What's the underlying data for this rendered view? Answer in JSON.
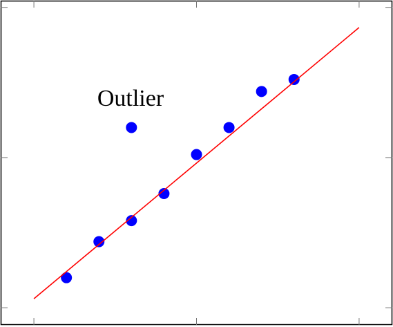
{
  "chart_data": {
    "type": "scatter",
    "annotation": "Outlier",
    "xlim": [
      -1,
      11
    ],
    "ylim": [
      -0.55,
      10.2
    ],
    "xticks": [
      0,
      5,
      10
    ],
    "yticks": [
      0,
      5,
      10
    ],
    "series": [
      {
        "style": "markers",
        "color": "#0000ff",
        "x": [
          1,
          2,
          3,
          4,
          5,
          6,
          7,
          8,
          3
        ],
        "values": [
          1,
          2.2,
          2.9,
          3.8,
          5.1,
          6,
          7.2,
          7.6,
          6
        ]
      },
      {
        "style": "line",
        "color": "#ff0000",
        "x": [
          0,
          10
        ],
        "values": [
          0.3,
          9.33
        ]
      }
    ]
  }
}
